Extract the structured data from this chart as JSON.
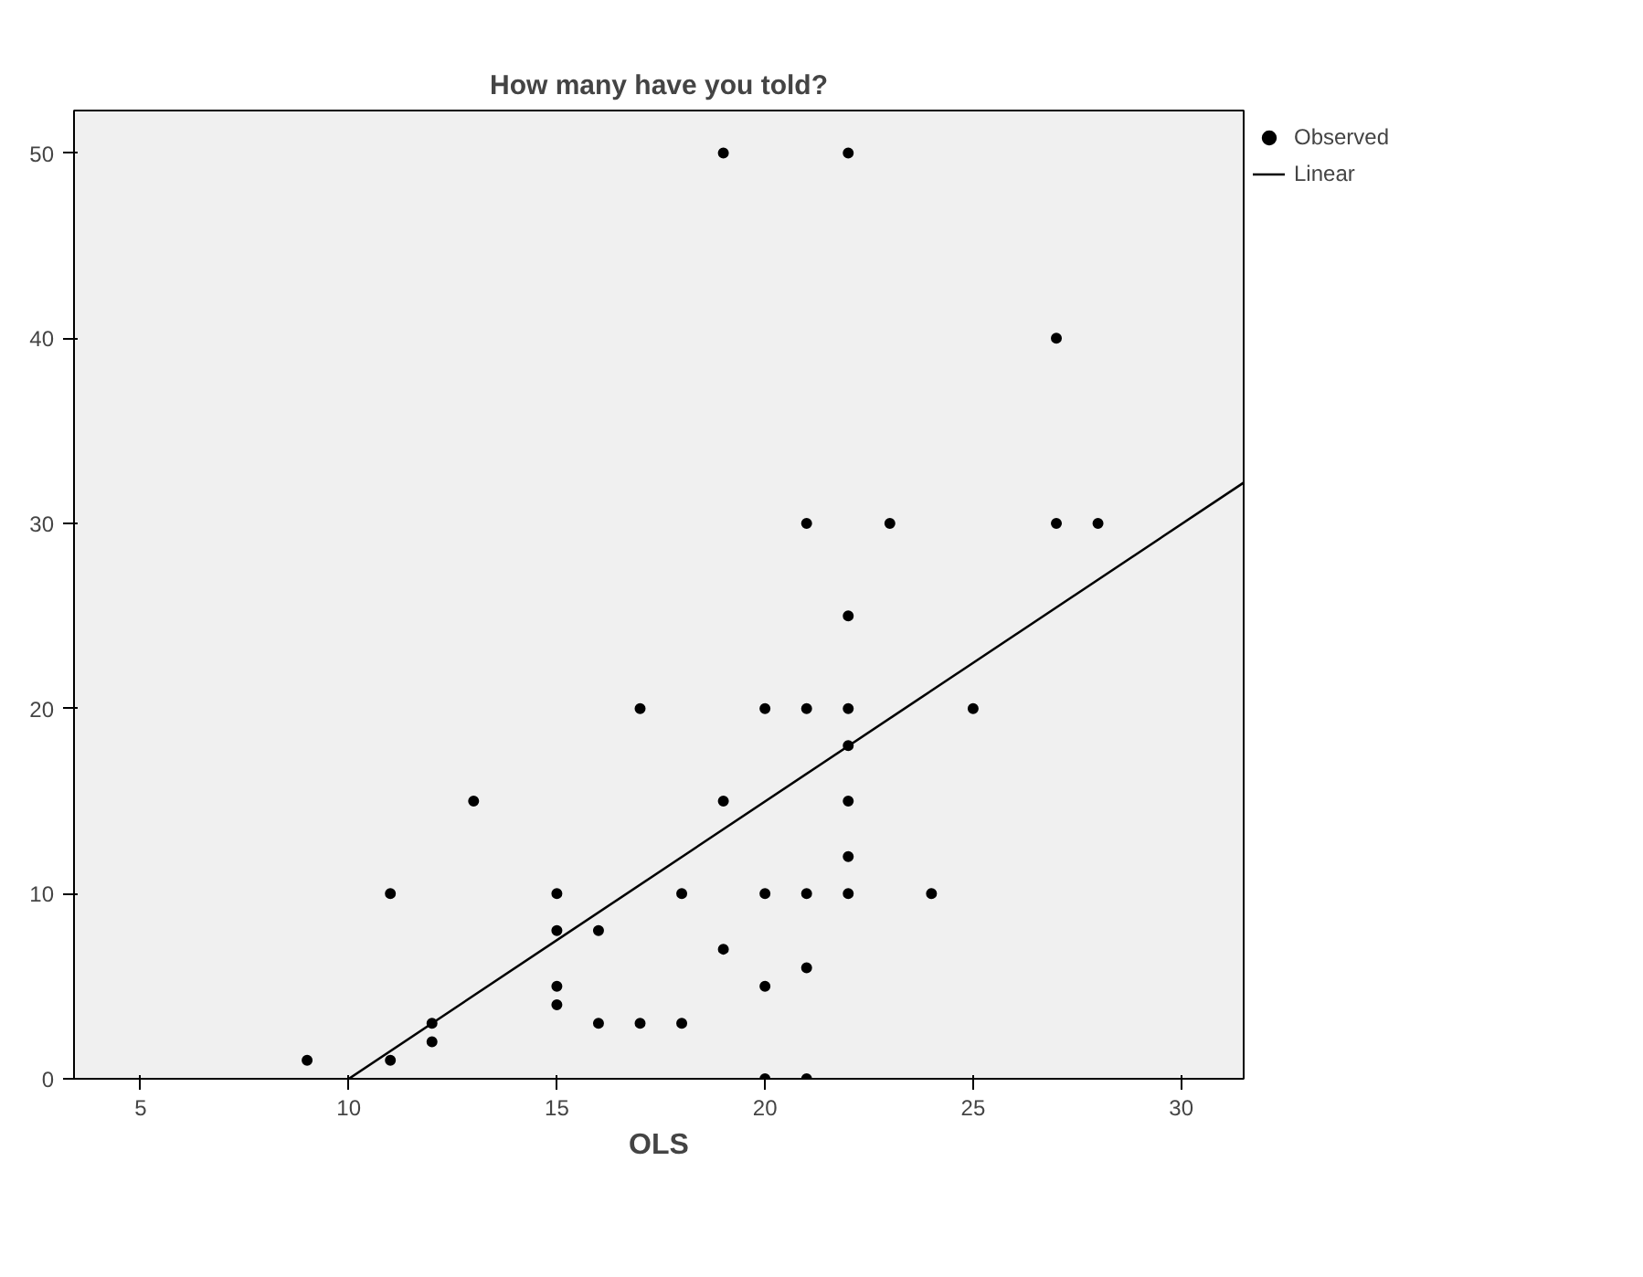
{
  "chart_data": {
    "type": "scatter",
    "title": "How many have you told?",
    "xlabel": "OLS",
    "xlim": [
      3.4,
      31.5
    ],
    "ylim": [
      0,
      52.3
    ],
    "xticks": [
      5,
      10,
      15,
      20,
      25,
      30
    ],
    "yticks": [
      0,
      10,
      20,
      30,
      40,
      50
    ],
    "grid": false,
    "legend": "top right",
    "series": [
      {
        "name": "Observed",
        "color": "#000000",
        "marker": "circle",
        "x": [
          9,
          11,
          11,
          12,
          12,
          13,
          15,
          15,
          15,
          15,
          16,
          16,
          17,
          17,
          18,
          18,
          19,
          19,
          19,
          20,
          20,
          20,
          20,
          21,
          21,
          21,
          21,
          21,
          22,
          22,
          22,
          22,
          22,
          22,
          22,
          23,
          24,
          25,
          27,
          27,
          28
        ],
        "values": [
          1,
          1,
          10,
          3,
          2,
          15,
          10,
          8,
          5,
          4,
          8,
          3,
          20,
          3,
          10,
          3,
          50,
          15,
          7,
          20,
          10,
          5,
          0,
          30,
          20,
          10,
          6,
          0,
          50,
          25,
          20,
          18,
          15,
          12,
          10,
          30,
          10,
          20,
          40,
          30,
          30
        ]
      },
      {
        "name": "Linear",
        "color": "#000000",
        "type": "line",
        "line_style": "solid",
        "x": [
          10,
          31.5
        ],
        "values": [
          0,
          32.2
        ]
      }
    ]
  }
}
